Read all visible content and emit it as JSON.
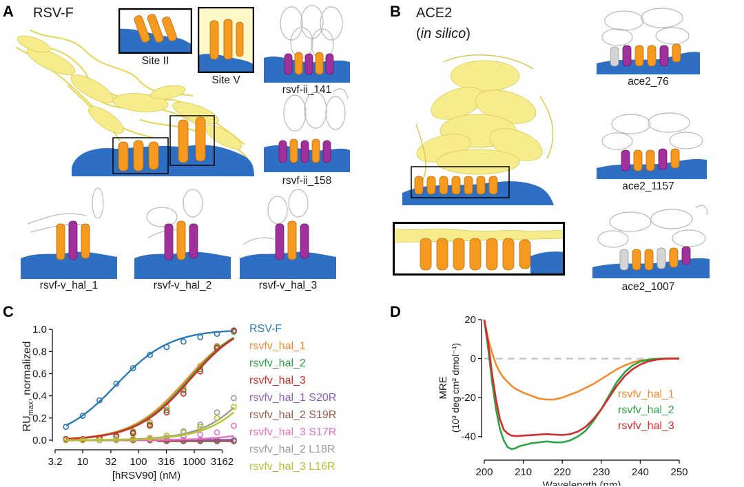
{
  "panels": {
    "a": {
      "letter": "A",
      "title": "RSV-F",
      "inset_site2": "Site II",
      "inset_site5": "Site V",
      "designs": [
        "rsvf-ii_141",
        "rsvf-ii_158",
        "rsvf-v_hal_1",
        "rsvf-v_hal_2",
        "rsvf-v_hal_3"
      ]
    },
    "b": {
      "letter": "B",
      "title": "ACE2",
      "subtitle_open": "(",
      "subtitle_italic": "in silico",
      "subtitle_close": ")",
      "designs": [
        "ace2_76",
        "ace2_1157",
        "ace2_1007"
      ]
    },
    "c": {
      "letter": "C"
    },
    "d": {
      "letter": "D"
    }
  },
  "colors": {
    "target_surface": "#2e6fc4",
    "binder_gray": "#d4d4d4",
    "helix_orange": "#f59a1f",
    "interface_purple": "#a0309c",
    "protein_yellow": "#f7ec8c"
  },
  "chart_data": [
    {
      "type": "line",
      "title": "",
      "xlabel": "[hRSV90] (nM)",
      "ylabel_main": "RU",
      "ylabel_sub": "max",
      "ylabel_rest": ", normalized",
      "xscale": "log",
      "xticks": [
        "3.2",
        "10",
        "32",
        "100",
        "316",
        "1000",
        "3162"
      ],
      "xtick_values": [
        3.2,
        10,
        32,
        100,
        316,
        1000,
        3162
      ],
      "yticks": [
        "0.0",
        "0.2",
        "0.4",
        "0.6",
        "0.8",
        "1.0"
      ],
      "ylim": [
        0,
        1
      ],
      "xlim": [
        3.2,
        6000
      ],
      "x": [
        5,
        10,
        20,
        40,
        80,
        160,
        320,
        640,
        1280,
        2560,
        5120
      ],
      "series": [
        {
          "name": "RSV-F",
          "color": "#2a7ab5",
          "ec50": 40,
          "top": 1.0,
          "hill": 0.9,
          "values": [
            0.12,
            0.22,
            0.36,
            0.51,
            0.65,
            0.77,
            0.84,
            0.89,
            0.93,
            0.96,
            0.99
          ]
        },
        {
          "name": "rsvfv_hal_1",
          "color": "#f58a2a",
          "ec50": 700,
          "top": 1.08,
          "hill": 0.9,
          "values": [
            0.01,
            0.01,
            0.02,
            0.04,
            0.08,
            0.16,
            0.3,
            0.48,
            0.67,
            0.85,
            0.98
          ]
        },
        {
          "name": "rsvfv_hal_2",
          "color": "#2aa345",
          "ec50": 800,
          "top": 1.1,
          "hill": 0.9,
          "values": [
            0.01,
            0.01,
            0.02,
            0.04,
            0.07,
            0.14,
            0.27,
            0.45,
            0.64,
            0.84,
            0.98
          ]
        },
        {
          "name": "rsvfv_hal_3",
          "color": "#d42a2a",
          "ec50": 850,
          "top": 1.1,
          "hill": 0.9,
          "values": [
            0.01,
            0.01,
            0.02,
            0.03,
            0.06,
            0.13,
            0.25,
            0.42,
            0.62,
            0.83,
            0.99
          ]
        },
        {
          "name": "rsvfv_hal_1 S20R",
          "color": "#8a5cc0",
          "ec50": 1000000,
          "top": 1,
          "hill": 1,
          "values": [
            0.0,
            0.0,
            0.0,
            0.0,
            0.0,
            0.0,
            0.0,
            0.0,
            0.0,
            0.0,
            0.0
          ]
        },
        {
          "name": "rsvfv_hal_2 S19R",
          "color": "#9a5a4a",
          "ec50": 1000000,
          "top": 1,
          "hill": 1,
          "values": [
            0.0,
            0.0,
            0.0,
            0.0,
            0.0,
            0.0,
            -0.01,
            -0.01,
            -0.01,
            -0.01,
            -0.01
          ]
        },
        {
          "name": "rsvfv_hal_3 S17R",
          "color": "#e870c8",
          "ec50": 100000,
          "top": 0.6,
          "hill": 0.9,
          "values": [
            0.0,
            0.0,
            0.0,
            0.0,
            0.01,
            0.01,
            0.02,
            0.03,
            0.05,
            0.07,
            0.13
          ]
        },
        {
          "name": "rsvfv_hal_2 L18R",
          "color": "#9a9a9a",
          "ec50": 20000,
          "top": 1.3,
          "hill": 0.9,
          "values": [
            0.0,
            0.0,
            0.0,
            0.01,
            0.01,
            0.02,
            0.04,
            0.08,
            0.14,
            0.25,
            0.38
          ]
        },
        {
          "name": "rsvfv_hal_3 L16R",
          "color": "#b5c22a",
          "ec50": 25000,
          "top": 1.3,
          "hill": 0.9,
          "values": [
            0.0,
            0.0,
            0.0,
            0.0,
            0.01,
            0.02,
            0.04,
            0.07,
            0.12,
            0.2,
            0.3
          ]
        }
      ]
    },
    {
      "type": "line",
      "title": "",
      "xlabel": "Wavelength (nm)",
      "ylabel_line1": "MRE",
      "ylabel_line2": "(10³ deg cm² dmol⁻¹)",
      "xticks": [
        "200",
        "210",
        "220",
        "230",
        "240",
        "250"
      ],
      "xtick_values": [
        200,
        210,
        220,
        230,
        240,
        250
      ],
      "yticks": [
        "20",
        "0",
        "-20",
        "-40"
      ],
      "ytick_values": [
        20,
        0,
        -20,
        -40
      ],
      "xlim": [
        200,
        250
      ],
      "ylim": [
        -50,
        20
      ],
      "reference_line": 0,
      "x": [
        200,
        201,
        202,
        203,
        204,
        205,
        206,
        207,
        208,
        209,
        210,
        212,
        214,
        216,
        218,
        220,
        222,
        224,
        226,
        228,
        230,
        232,
        234,
        236,
        238,
        240,
        242,
        244,
        246,
        248,
        250
      ],
      "series": [
        {
          "name": "rsvfv_hal_1",
          "color": "#f58a2a",
          "values": [
            20,
            10,
            3,
            -3,
            -7,
            -10,
            -12,
            -14,
            -15.5,
            -16.5,
            -17.5,
            -19,
            -20.5,
            -21,
            -21,
            -20,
            -18.5,
            -17,
            -15,
            -13,
            -10.5,
            -8,
            -5.5,
            -3.5,
            -2,
            -1,
            -0.5,
            -0.2,
            0,
            0,
            0
          ]
        },
        {
          "name": "rsvfv_hal_2",
          "color": "#2aa345",
          "values": [
            20,
            5,
            -12,
            -26,
            -36,
            -42,
            -45.5,
            -46.5,
            -46,
            -45,
            -44.5,
            -43.5,
            -43,
            -42.5,
            -43,
            -43,
            -42,
            -40,
            -37,
            -32,
            -26,
            -19,
            -12,
            -7,
            -3.5,
            -1.5,
            -0.6,
            -0.2,
            0,
            0,
            0
          ]
        },
        {
          "name": "rsvfv_hal_3",
          "color": "#d42a2a",
          "values": [
            20,
            8,
            -8,
            -21,
            -31,
            -36.5,
            -38.5,
            -39.5,
            -39.8,
            -39.7,
            -39.5,
            -39.3,
            -39,
            -38.8,
            -39,
            -39.2,
            -38.8,
            -37.5,
            -35,
            -31,
            -26,
            -20,
            -14,
            -9,
            -5.5,
            -3,
            -1.5,
            -0.6,
            -0.2,
            0,
            0
          ]
        }
      ]
    }
  ]
}
